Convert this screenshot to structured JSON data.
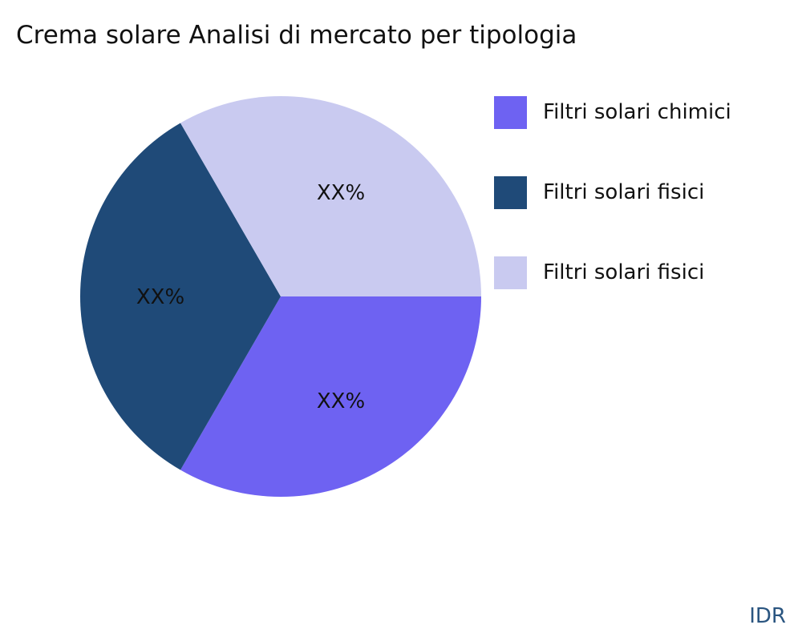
{
  "chart_data": {
    "type": "pie",
    "title": "Crema solare Analisi di mercato per tipologia",
    "slices": [
      {
        "name": "Filtri solari chimici",
        "value": 33.33,
        "label": "XX%",
        "color": "#6e62f2"
      },
      {
        "name": "Filtri solari fisici",
        "value": 33.33,
        "label": "XX%",
        "color": "#1f4a78"
      },
      {
        "name": "Filtri solari fisici",
        "value": 33.33,
        "label": "XX%",
        "color": "#c9caf0"
      }
    ],
    "start_angle": "3 o'clock, clockwise",
    "legend_position": "right"
  },
  "brand": "IDR"
}
